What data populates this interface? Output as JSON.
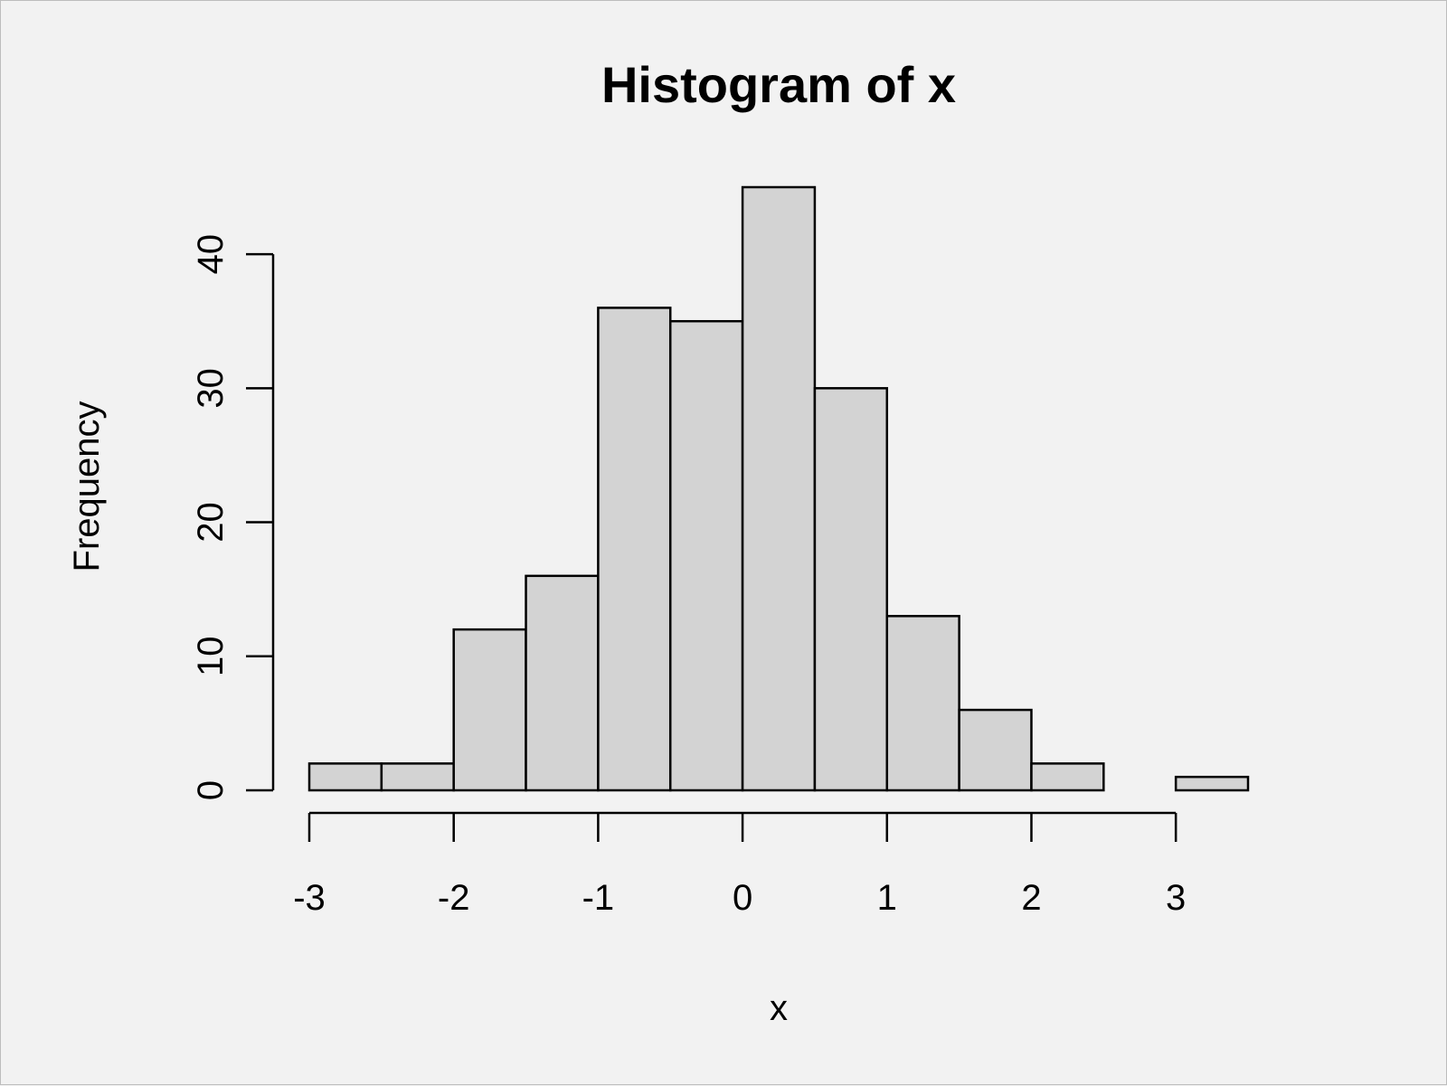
{
  "chart_data": {
    "type": "bar",
    "title": "Histogram of x",
    "xlabel": "x",
    "ylabel": "Frequency",
    "bins": [
      {
        "from": -3.0,
        "to": -2.5,
        "count": 2
      },
      {
        "from": -2.5,
        "to": -2.0,
        "count": 2
      },
      {
        "from": -2.0,
        "to": -1.5,
        "count": 12
      },
      {
        "from": -1.5,
        "to": -1.0,
        "count": 16
      },
      {
        "from": -1.0,
        "to": -0.5,
        "count": 36
      },
      {
        "from": -0.5,
        "to": 0.0,
        "count": 35
      },
      {
        "from": 0.0,
        "to": 0.5,
        "count": 45
      },
      {
        "from": 0.5,
        "to": 1.0,
        "count": 30
      },
      {
        "from": 1.0,
        "to": 1.5,
        "count": 13
      },
      {
        "from": 1.5,
        "to": 2.0,
        "count": 6
      },
      {
        "from": 2.0,
        "to": 2.5,
        "count": 2
      },
      {
        "from": 2.5,
        "to": 3.0,
        "count": 0
      },
      {
        "from": 3.0,
        "to": 3.5,
        "count": 1
      }
    ],
    "x_ticks": [
      -3,
      -2,
      -1,
      0,
      1,
      2,
      3
    ],
    "x_tick_labels": [
      "-3",
      "-2",
      "-1",
      "0",
      "1",
      "2",
      "3"
    ],
    "y_ticks": [
      0,
      10,
      20,
      30,
      40
    ],
    "y_tick_labels": [
      "0",
      "10",
      "20",
      "30",
      "40"
    ],
    "xlim": [
      -3.0,
      3.5
    ],
    "ylim": [
      0,
      45
    ],
    "grid": false,
    "colors": {
      "bar_fill": "#d3d3d3",
      "bar_stroke": "#000000",
      "background": "#f2f2f2"
    }
  }
}
